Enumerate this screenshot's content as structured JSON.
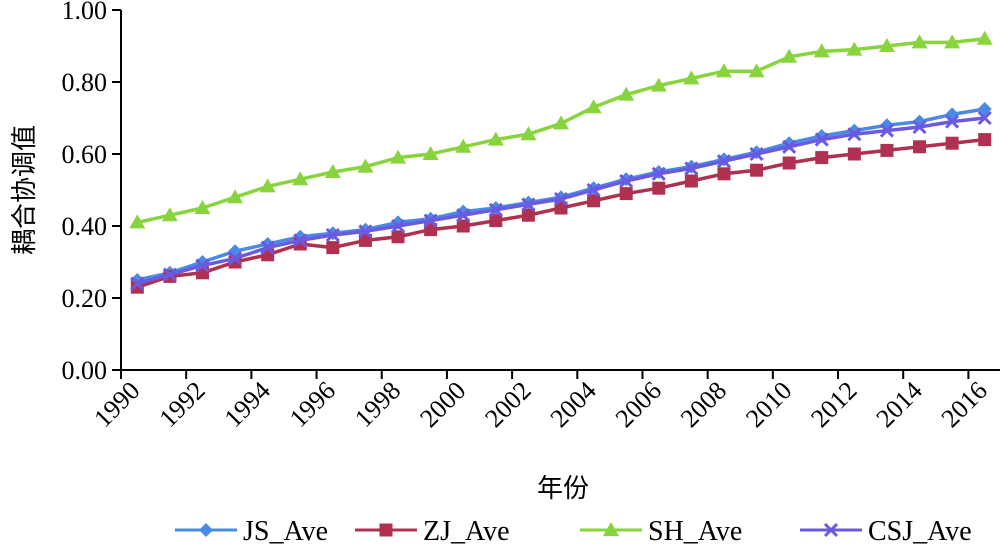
{
  "chart_data": {
    "type": "line",
    "title": "",
    "xlabel": "年份",
    "ylabel": "耦合协调值",
    "ylim": [
      0,
      1
    ],
    "yticks": [
      "0.00",
      "0.20",
      "0.40",
      "0.60",
      "0.80",
      "1.00"
    ],
    "ytick_values": [
      0,
      0.2,
      0.4,
      0.6,
      0.8,
      1.0
    ],
    "grid": false,
    "legend_position": "bottom",
    "x": [
      1990,
      1991,
      1992,
      1993,
      1994,
      1995,
      1996,
      1997,
      1998,
      1999,
      2000,
      2001,
      2002,
      2003,
      2004,
      2005,
      2006,
      2007,
      2008,
      2009,
      2010,
      2011,
      2012,
      2013,
      2014,
      2015,
      2016
    ],
    "xtick_labels": [
      "1990",
      "1992",
      "1994",
      "1996",
      "1998",
      "2000",
      "2002",
      "2004",
      "2006",
      "2008",
      "2010",
      "2012",
      "2014",
      "2016"
    ],
    "series": [
      {
        "name": "JS_Ave",
        "color": "#4a8ae6",
        "marker": "diamond",
        "values": [
          0.25,
          0.27,
          0.3,
          0.33,
          0.35,
          0.37,
          0.38,
          0.39,
          0.41,
          0.42,
          0.44,
          0.45,
          0.465,
          0.48,
          0.505,
          0.53,
          0.55,
          0.565,
          0.585,
          0.605,
          0.63,
          0.65,
          0.665,
          0.68,
          0.69,
          0.71,
          0.725
        ]
      },
      {
        "name": "ZJ_Ave",
        "color": "#b0304f",
        "marker": "square",
        "values": [
          0.23,
          0.26,
          0.27,
          0.3,
          0.32,
          0.35,
          0.34,
          0.36,
          0.37,
          0.39,
          0.4,
          0.415,
          0.43,
          0.45,
          0.47,
          0.49,
          0.505,
          0.525,
          0.545,
          0.555,
          0.575,
          0.59,
          0.6,
          0.61,
          0.62,
          0.63,
          0.64
        ]
      },
      {
        "name": "SH_Ave",
        "color": "#88d43c",
        "marker": "triangle",
        "values": [
          0.41,
          0.43,
          0.45,
          0.48,
          0.51,
          0.53,
          0.55,
          0.565,
          0.59,
          0.6,
          0.62,
          0.64,
          0.655,
          0.685,
          0.73,
          0.765,
          0.79,
          0.81,
          0.83,
          0.83,
          0.87,
          0.885,
          0.89,
          0.9,
          0.91,
          0.91,
          0.92
        ]
      },
      {
        "name": "CSJ_Ave",
        "color": "#6a5ae0",
        "marker": "x",
        "values": [
          0.24,
          0.265,
          0.29,
          0.31,
          0.34,
          0.36,
          0.375,
          0.385,
          0.4,
          0.415,
          0.43,
          0.445,
          0.46,
          0.475,
          0.5,
          0.525,
          0.545,
          0.56,
          0.58,
          0.6,
          0.62,
          0.64,
          0.655,
          0.665,
          0.675,
          0.69,
          0.7
        ]
      }
    ]
  }
}
